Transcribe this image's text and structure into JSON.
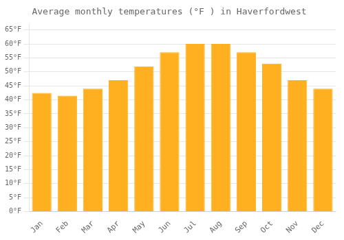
{
  "chart_data": {
    "type": "bar",
    "title": "Average monthly temperatures (°F ) in Haverfordwest",
    "categories": [
      "Jan",
      "Feb",
      "Mar",
      "Apr",
      "May",
      "Jun",
      "Jul",
      "Aug",
      "Sep",
      "Oct",
      "Nov",
      "Dec"
    ],
    "values": [
      42.5,
      41.5,
      44.0,
      47.0,
      52.0,
      57.0,
      60.0,
      60.0,
      57.0,
      53.0,
      47.0,
      44.0
    ],
    "color": "#FFB020",
    "ylim": [
      0,
      67
    ],
    "yticks": [
      {
        "value": 0,
        "label": "0°F"
      },
      {
        "value": 5,
        "label": "5°F"
      },
      {
        "value": 10,
        "label": "10°F"
      },
      {
        "value": 15,
        "label": "15°F"
      },
      {
        "value": 20,
        "label": "20°F"
      },
      {
        "value": 25,
        "label": "25°F"
      },
      {
        "value": 30,
        "label": "30°F"
      },
      {
        "value": 35,
        "label": "35°F"
      },
      {
        "value": 40,
        "label": "40°F"
      },
      {
        "value": 45,
        "label": "45°F"
      },
      {
        "value": 50,
        "label": "50°F"
      },
      {
        "value": 55,
        "label": "55°F"
      },
      {
        "value": 60,
        "label": "60°F"
      },
      {
        "value": 65,
        "label": "65°F"
      }
    ],
    "grid": true
  }
}
